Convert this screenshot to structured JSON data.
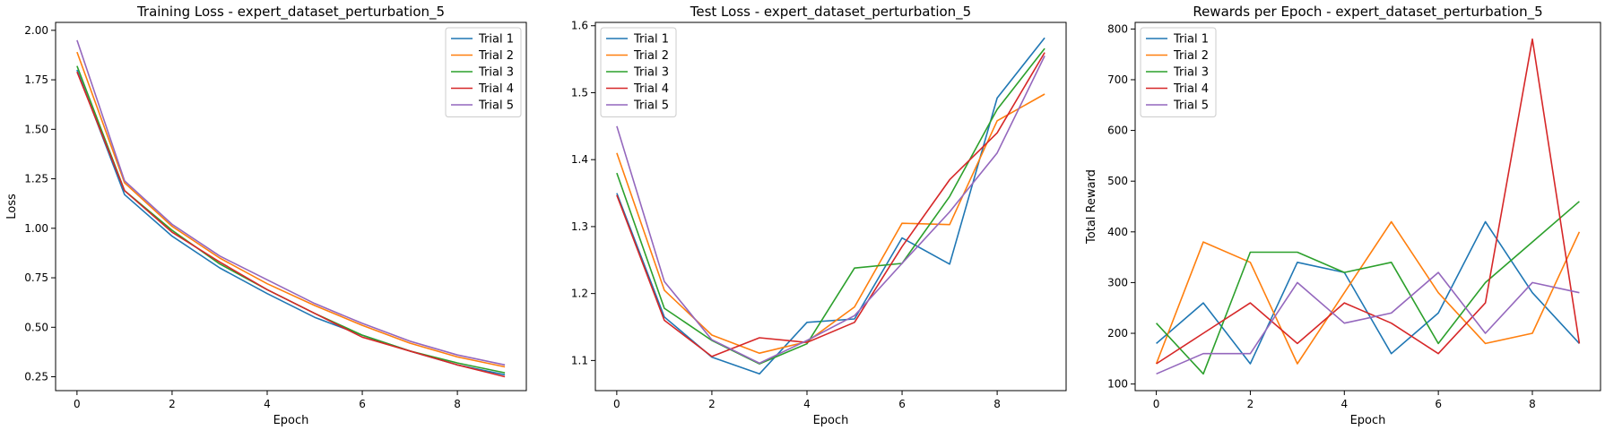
{
  "colors": [
    "#1f77b4",
    "#ff7f0e",
    "#2ca02c",
    "#d62728",
    "#9467bd"
  ],
  "chart_data": [
    {
      "type": "line",
      "title": "Training Loss - expert_dataset_perturbation_5",
      "xlabel": "Epoch",
      "ylabel": "Loss",
      "xlim": [
        -0.45,
        9.45
      ],
      "ylim": [
        0.18,
        2.04
      ],
      "xticks": [
        0,
        2,
        4,
        6,
        8
      ],
      "yticks": [
        0.25,
        0.5,
        0.75,
        1.0,
        1.25,
        1.5,
        1.75,
        2.0
      ],
      "ytick_labels": [
        "0.25",
        "0.50",
        "0.75",
        "1.00",
        "1.25",
        "1.50",
        "1.75",
        "2.00"
      ],
      "legend": "top-right",
      "x": [
        0,
        1,
        2,
        3,
        4,
        5,
        6,
        7,
        8,
        9
      ],
      "series": [
        {
          "name": "Trial 1",
          "values": [
            1.8,
            1.17,
            0.96,
            0.8,
            0.67,
            0.55,
            0.46,
            0.38,
            0.31,
            0.26
          ]
        },
        {
          "name": "Trial 2",
          "values": [
            1.89,
            1.23,
            1.01,
            0.85,
            0.72,
            0.61,
            0.51,
            0.42,
            0.35,
            0.3
          ]
        },
        {
          "name": "Trial 3",
          "values": [
            1.82,
            1.19,
            0.99,
            0.82,
            0.69,
            0.57,
            0.46,
            0.38,
            0.32,
            0.27
          ]
        },
        {
          "name": "Trial 4",
          "values": [
            1.79,
            1.19,
            0.98,
            0.83,
            0.69,
            0.57,
            0.45,
            0.38,
            0.31,
            0.25
          ]
        },
        {
          "name": "Trial 5",
          "values": [
            1.95,
            1.24,
            1.02,
            0.86,
            0.74,
            0.62,
            0.52,
            0.43,
            0.36,
            0.31
          ]
        }
      ]
    },
    {
      "type": "line",
      "title": "Test Loss - expert_dataset_perturbation_5",
      "xlabel": "Epoch",
      "ylabel": "",
      "xlim": [
        -0.45,
        9.45
      ],
      "ylim": [
        1.055,
        1.605
      ],
      "xticks": [
        0,
        2,
        4,
        6,
        8
      ],
      "yticks": [
        1.1,
        1.2,
        1.3,
        1.4,
        1.5,
        1.6
      ],
      "ytick_labels": [
        "1.1",
        "1.2",
        "1.3",
        "1.4",
        "1.5",
        "1.6"
      ],
      "legend": "top-left",
      "x": [
        0,
        1,
        2,
        3,
        4,
        5,
        6,
        7,
        8,
        9
      ],
      "series": [
        {
          "name": "Trial 1",
          "values": [
            1.35,
            1.165,
            1.105,
            1.08,
            1.157,
            1.162,
            1.283,
            1.244,
            1.492,
            1.582
          ]
        },
        {
          "name": "Trial 2",
          "values": [
            1.41,
            1.205,
            1.138,
            1.111,
            1.128,
            1.18,
            1.305,
            1.303,
            1.458,
            1.498
          ]
        },
        {
          "name": "Trial 3",
          "values": [
            1.38,
            1.178,
            1.13,
            1.095,
            1.125,
            1.238,
            1.245,
            1.345,
            1.475,
            1.566
          ]
        },
        {
          "name": "Trial 4",
          "values": [
            1.347,
            1.16,
            1.106,
            1.134,
            1.127,
            1.157,
            1.27,
            1.37,
            1.44,
            1.56
          ]
        },
        {
          "name": "Trial 5",
          "values": [
            1.45,
            1.218,
            1.131,
            1.096,
            1.13,
            1.167,
            1.245,
            1.322,
            1.41,
            1.555
          ]
        }
      ]
    },
    {
      "type": "line",
      "title": "Rewards per Epoch - expert_dataset_perturbation_5",
      "xlabel": "Epoch",
      "ylabel": "Total Reward",
      "xlim": [
        -0.45,
        9.45
      ],
      "ylim": [
        87,
        813
      ],
      "xticks": [
        0,
        2,
        4,
        6,
        8
      ],
      "yticks": [
        100,
        200,
        300,
        400,
        500,
        600,
        700,
        800
      ],
      "ytick_labels": [
        "100",
        "200",
        "300",
        "400",
        "500",
        "600",
        "700",
        "800"
      ],
      "legend": "top-left",
      "x": [
        0,
        1,
        2,
        3,
        4,
        5,
        6,
        7,
        8,
        9
      ],
      "series": [
        {
          "name": "Trial 1",
          "values": [
            180,
            260,
            140,
            340,
            320,
            160,
            240,
            420,
            280,
            180
          ]
        },
        {
          "name": "Trial 2",
          "values": [
            140,
            380,
            340,
            140,
            280,
            420,
            280,
            180,
            200,
            400
          ]
        },
        {
          "name": "Trial 3",
          "values": [
            220,
            120,
            360,
            360,
            320,
            340,
            180,
            300,
            380,
            460
          ]
        },
        {
          "name": "Trial 4",
          "values": [
            140,
            200,
            260,
            180,
            260,
            220,
            160,
            260,
            780,
            180
          ]
        },
        {
          "name": "Trial 5",
          "values": [
            120,
            160,
            160,
            300,
            220,
            240,
            320,
            200,
            300,
            280
          ]
        }
      ]
    }
  ]
}
